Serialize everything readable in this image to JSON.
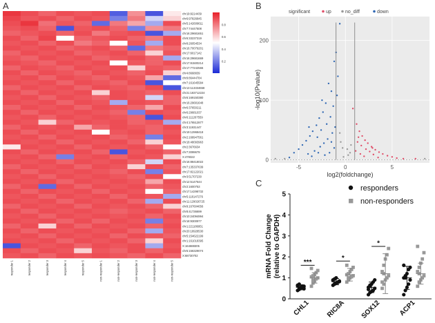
{
  "panel_letters": {
    "a": "A",
    "b": "B",
    "c": "C"
  },
  "chart_data": [
    {
      "type": "heatmap",
      "panel": "A",
      "title": "",
      "columns": [
        "responder 1",
        "responder 2",
        "responder 3",
        "responder 4",
        "responder 5",
        "non-responder 1",
        "non-responder 2",
        "non-responder 3",
        "non-responder 4",
        "non-responder 5"
      ],
      "rows": [
        "chr19:9214439",
        "chr6:97826845",
        "chr5:142609611",
        "chr7:74447508",
        "chr16:29681651",
        "chr6:33237319",
        "chr8:26054534",
        "chr16:70079201",
        "chr17:6017142",
        "chr16:29681669",
        "chr17:81500214",
        "chr17:77242566",
        "chr4:8668839",
        "chr9:86444784",
        "chr7:161645584",
        "chr13:113334658",
        "chr21:183712224",
        "chr6:169150380",
        "chr16:29681648",
        "chr6:37650211",
        "chr6:29681037",
        "chr6:111267559",
        "chr4:176512877",
        "chr3:11931447",
        "chr19:12968418",
        "chr2:168947561",
        "chr18:48093963",
        "chr2:3676634",
        "chr7:3099679",
        "X:478322",
        "chr16:88418022",
        "chr7:135337639",
        "chr17:82122021",
        "chr3:51707230",
        "chr12:5147544",
        "chr2:1600753",
        "chr17:14298732",
        "chr5:118147276",
        "chr11:129026725",
        "chr9:167604656",
        "chr8:41736699",
        "chr10:24094994",
        "chr18:9300977",
        "chr1:221186951",
        "chr20:18928530",
        "chr5:154622199",
        "chr1:161018395",
        "X:164688305",
        "chr5:156329074",
        "X:68730702"
      ],
      "values": [
        [
          0.95,
          0.9,
          0.85,
          0.9,
          0.88,
          0.9,
          0.12,
          0.75,
          0.1,
          0.55
        ],
        [
          0.92,
          0.88,
          0.9,
          0.85,
          0.9,
          0.88,
          0.2,
          0.8,
          0.4,
          0.6
        ],
        [
          0.9,
          0.95,
          0.82,
          0.88,
          0.85,
          0.15,
          0.8,
          0.7,
          0.3,
          0.9
        ],
        [
          0.88,
          0.9,
          0.85,
          0.1,
          0.88,
          0.9,
          0.85,
          0.2,
          0.75,
          0.8
        ],
        [
          0.85,
          0.88,
          0.9,
          0.85,
          0.9,
          0.8,
          0.88,
          0.9,
          0.1,
          0.3
        ],
        [
          0.9,
          0.85,
          0.92,
          0.5,
          0.85,
          0.88,
          0.9,
          0.85,
          0.8,
          0.9
        ],
        [
          0.88,
          0.9,
          0.85,
          0.9,
          0.8,
          0.85,
          0.5,
          0.88,
          0.3,
          0.9
        ],
        [
          0.9,
          0.88,
          0.9,
          0.85,
          0.88,
          0.9,
          0.85,
          0.15,
          0.8,
          0.85
        ],
        [
          0.85,
          0.9,
          0.88,
          0.9,
          0.85,
          0.88,
          0.9,
          0.85,
          0.6,
          0.88
        ],
        [
          0.88,
          0.85,
          0.9,
          0.88,
          0.9,
          0.85,
          0.88,
          0.9,
          0.85,
          0.3
        ],
        [
          0.9,
          0.88,
          0.85,
          0.9,
          0.88,
          0.9,
          0.5,
          0.88,
          0.85,
          0.9
        ],
        [
          0.85,
          0.9,
          0.88,
          0.85,
          0.9,
          0.88,
          0.9,
          0.6,
          0.88,
          0.85
        ],
        [
          0.9,
          0.85,
          0.9,
          0.88,
          0.85,
          0.9,
          0.88,
          0.85,
          0.9,
          0.6
        ],
        [
          0.88,
          0.9,
          0.85,
          0.9,
          0.88,
          0.85,
          0.9,
          0.88,
          0.7,
          0.15
        ],
        [
          0.9,
          0.88,
          0.9,
          0.85,
          0.9,
          0.88,
          0.85,
          0.9,
          0.1,
          0.5
        ],
        [
          0.85,
          0.9,
          0.88,
          0.9,
          0.85,
          0.9,
          0.88,
          0.85,
          0.9,
          0.1
        ],
        [
          0.9,
          0.85,
          0.9,
          0.88,
          0.9,
          0.6,
          0.9,
          0.88,
          0.85,
          0.9
        ],
        [
          0.88,
          0.9,
          0.85,
          0.9,
          0.88,
          0.85,
          0.9,
          0.88,
          0.4,
          0.85
        ],
        [
          0.9,
          0.88,
          0.9,
          0.85,
          0.9,
          0.88,
          0.3,
          0.9,
          0.88,
          0.85
        ],
        [
          0.85,
          0.9,
          0.88,
          0.9,
          0.85,
          0.9,
          0.88,
          0.85,
          0.7,
          0.9
        ],
        [
          0.9,
          0.85,
          0.9,
          0.88,
          0.9,
          0.88,
          0.85,
          0.2,
          0.9,
          0.88
        ],
        [
          0.88,
          0.9,
          0.85,
          0.9,
          0.88,
          0.9,
          0.88,
          0.85,
          0.1,
          0.9
        ],
        [
          0.9,
          0.88,
          0.6,
          0.85,
          0.9,
          0.88,
          0.9,
          0.85,
          0.88,
          0.3
        ],
        [
          0.85,
          0.9,
          0.88,
          0.9,
          0.7,
          0.85,
          0.9,
          0.88,
          0.85,
          0.9
        ],
        [
          0.9,
          0.85,
          0.9,
          0.88,
          0.9,
          0.5,
          0.88,
          0.9,
          0.85,
          0.88
        ],
        [
          0.88,
          0.9,
          0.85,
          0.9,
          0.88,
          0.9,
          0.85,
          0.88,
          0.2,
          0.9
        ],
        [
          0.9,
          0.88,
          0.9,
          0.85,
          0.9,
          0.88,
          0.9,
          0.85,
          0.6,
          0.88
        ],
        [
          0.55,
          0.9,
          0.88,
          0.9,
          0.85,
          0.9,
          0.88,
          0.9,
          0.85,
          0.5
        ],
        [
          0.9,
          0.85,
          0.9,
          0.88,
          0.9,
          0.85,
          0.1,
          0.88,
          0.9,
          0.85
        ],
        [
          0.88,
          0.9,
          0.85,
          0.2,
          0.88,
          0.9,
          0.85,
          0.9,
          0.88,
          0.6
        ],
        [
          0.9,
          0.88,
          0.9,
          0.85,
          0.9,
          0.88,
          0.9,
          0.85,
          0.4,
          0.9
        ],
        [
          0.85,
          0.9,
          0.88,
          0.9,
          0.85,
          0.9,
          0.88,
          0.6,
          0.9,
          0.85
        ],
        [
          0.9,
          0.85,
          0.9,
          0.88,
          0.9,
          0.88,
          0.85,
          0.9,
          0.2,
          0.88
        ],
        [
          0.88,
          0.9,
          0.85,
          0.9,
          0.88,
          0.9,
          0.88,
          0.85,
          0.9,
          0.5
        ],
        [
          0.9,
          0.88,
          0.9,
          0.85,
          0.9,
          0.88,
          0.9,
          0.88,
          0.7,
          0.9
        ],
        [
          0.85,
          0.9,
          0.15,
          0.9,
          0.85,
          0.9,
          0.88,
          0.9,
          0.85,
          0.88
        ],
        [
          0.9,
          0.85,
          0.9,
          0.88,
          0.9,
          0.85,
          0.9,
          0.88,
          0.5,
          0.85
        ],
        [
          0.88,
          0.9,
          0.85,
          0.9,
          0.88,
          0.9,
          0.85,
          0.9,
          0.88,
          0.3
        ],
        [
          0.9,
          0.88,
          0.9,
          0.85,
          0.9,
          0.88,
          0.9,
          0.85,
          0.3,
          0.9
        ],
        [
          0.85,
          0.9,
          0.88,
          0.9,
          0.85,
          0.9,
          0.88,
          0.9,
          0.85,
          0.6
        ],
        [
          0.9,
          0.85,
          0.9,
          0.88,
          0.9,
          0.88,
          0.85,
          0.88,
          0.9,
          0.85
        ],
        [
          0.88,
          0.9,
          0.85,
          0.9,
          0.88,
          0.9,
          0.88,
          0.9,
          0.85,
          0.9
        ],
        [
          0.9,
          0.88,
          0.9,
          0.85,
          0.9,
          0.85,
          0.9,
          0.88,
          0.2,
          0.88
        ],
        [
          0.85,
          0.9,
          0.6,
          0.9,
          0.85,
          0.9,
          0.88,
          0.9,
          0.85,
          0.9
        ],
        [
          0.9,
          0.85,
          0.9,
          0.88,
          0.9,
          0.88,
          0.9,
          0.85,
          0.3,
          0.88
        ],
        [
          0.88,
          0.9,
          0.85,
          0.9,
          0.88,
          0.9,
          0.85,
          0.9,
          0.88,
          0.85
        ],
        [
          0.9,
          0.88,
          0.9,
          0.85,
          0.9,
          0.88,
          0.9,
          0.85,
          0.6,
          0.9
        ],
        [
          0.1,
          0.9,
          0.88,
          0.9,
          0.85,
          0.9,
          0.88,
          0.9,
          0.3,
          0.88
        ],
        [
          0.9,
          0.85,
          0.9,
          0.88,
          0.6,
          0.88,
          0.85,
          0.9,
          0.85,
          0.9
        ],
        [
          0.88,
          0.9,
          0.85,
          0.9,
          0.88,
          0.9,
          0.88,
          0.85,
          0.9,
          0.85
        ]
      ],
      "colorbar_ticks": [
        "0.8",
        "0.6",
        "0.4",
        "0.2"
      ],
      "colorbar_values": [
        0.8,
        0.6,
        0.4,
        0.2
      ],
      "color_low": "#1c2bd6",
      "color_mid": "#ffffff",
      "color_high": "#e8202a"
    },
    {
      "type": "scatter",
      "panel": "B",
      "title": "",
      "legend_title": "significant",
      "legend": [
        {
          "label": "up",
          "color": "#e0506a"
        },
        {
          "label": "no_diff",
          "color": "#999999"
        },
        {
          "label": "down",
          "color": "#2f67b3"
        }
      ],
      "xlabel": "log2(foldchange)",
      "ylabel": "-log10(Pvalue)",
      "xlim": [
        -8,
        9
      ],
      "ylim": [
        -5,
        240
      ],
      "xticks": [
        -5,
        0,
        5
      ],
      "yticks": [
        0,
        100,
        200
      ],
      "vlines": [
        -1,
        1
      ],
      "down_points": [
        [
          -0.6,
          228
        ],
        [
          -0.8,
          140
        ],
        [
          -1.2,
          165
        ],
        [
          -1.5,
          115
        ],
        [
          -1.8,
          128
        ],
        [
          -2.1,
          95
        ],
        [
          -2.4,
          80
        ],
        [
          -2.8,
          70
        ],
        [
          -3.1,
          58
        ],
        [
          -3.5,
          48
        ],
        [
          -3.8,
          40
        ],
        [
          -4.2,
          32
        ],
        [
          -4.6,
          25
        ],
        [
          -5.0,
          18
        ],
        [
          -1.3,
          90
        ],
        [
          -1.6,
          72
        ],
        [
          -2.0,
          60
        ],
        [
          -2.6,
          50
        ],
        [
          -3.0,
          38
        ],
        [
          -1.1,
          55
        ],
        [
          -1.4,
          45
        ],
        [
          -1.9,
          35
        ],
        [
          -2.3,
          28
        ],
        [
          -2.7,
          22
        ],
        [
          -3.3,
          15
        ],
        [
          -1.2,
          20
        ],
        [
          -1.7,
          12
        ],
        [
          -2.2,
          8
        ],
        [
          -3.6,
          6
        ],
        [
          -4.0,
          10
        ],
        [
          -0.9,
          108
        ],
        [
          -1.0,
          180
        ],
        [
          -2.5,
          100
        ],
        [
          -3.9,
          55
        ],
        [
          -5.5,
          12
        ],
        [
          -6.0,
          4
        ],
        [
          -1.5,
          30
        ],
        [
          -2.9,
          12
        ]
      ],
      "up_points": [
        [
          0.8,
          86
        ],
        [
          1.2,
          60
        ],
        [
          1.5,
          48
        ],
        [
          1.8,
          40
        ],
        [
          2.1,
          33
        ],
        [
          2.4,
          28
        ],
        [
          2.8,
          22
        ],
        [
          3.2,
          17
        ],
        [
          3.6,
          13
        ],
        [
          4.0,
          10
        ],
        [
          4.5,
          7
        ],
        [
          5.0,
          5
        ],
        [
          1.3,
          30
        ],
        [
          1.7,
          24
        ],
        [
          2.2,
          18
        ],
        [
          2.6,
          14
        ],
        [
          3.0,
          9
        ],
        [
          1.1,
          15
        ],
        [
          1.6,
          10
        ],
        [
          2.0,
          6
        ],
        [
          3.5,
          4
        ],
        [
          5.5,
          3
        ],
        [
          6.2,
          2
        ],
        [
          7.5,
          2
        ],
        [
          1.4,
          38
        ],
        [
          2.9,
          20
        ]
      ],
      "nodiff_points": [
        [
          -0.5,
          30
        ],
        [
          -0.3,
          20
        ],
        [
          0.2,
          18
        ],
        [
          0.5,
          12
        ],
        [
          -0.6,
          45
        ],
        [
          0.3,
          8
        ],
        [
          -0.2,
          5
        ],
        [
          0.6,
          25
        ],
        [
          -7.5,
          2
        ],
        [
          -6.5,
          2
        ],
        [
          8.5,
          2
        ]
      ]
    },
    {
      "type": "scatter",
      "panel": "C",
      "title": "",
      "ylabel": "mRNA Fold Change\n(relative to GAPDH)",
      "ylim": [
        0,
        5
      ],
      "yticks": [
        0,
        1,
        2,
        3,
        4,
        5
      ],
      "categories": [
        "CHL1",
        "RIC8A",
        "SOX12",
        "ACP1"
      ],
      "series": [
        {
          "name": "responders",
          "marker": "circle",
          "color": "#111111",
          "means": [
            0.55,
            0.82,
            0.55,
            1.0
          ],
          "sd": [
            0.12,
            0.15,
            0.25,
            0.55
          ],
          "points": [
            [
              0.4,
              0.45,
              0.5,
              0.55,
              0.6,
              0.65,
              0.5,
              0.55,
              0.6,
              0.48,
              0.62,
              0.7
            ],
            [
              0.65,
              0.7,
              0.75,
              0.8,
              0.85,
              0.9,
              0.95,
              1.0,
              0.78,
              0.82,
              0.88,
              0.72
            ],
            [
              0.2,
              0.3,
              0.35,
              0.4,
              0.5,
              0.55,
              0.6,
              0.7,
              0.8,
              0.9,
              0.45,
              0.65
            ],
            [
              0.2,
              0.4,
              0.55,
              0.7,
              0.9,
              1.0,
              1.1,
              1.2,
              1.4,
              1.5,
              1.6,
              1.0
            ]
          ]
        },
        {
          "name": "non-responders",
          "marker": "square",
          "color": "#999999",
          "means": [
            1.0,
            1.15,
            1.2,
            1.2
          ],
          "sd": [
            0.25,
            0.3,
            0.95,
            0.5
          ],
          "points": [
            [
              0.6,
              0.75,
              0.85,
              0.95,
              1.0,
              1.05,
              1.1,
              1.15,
              1.25,
              1.35,
              1.45,
              0.9
            ],
            [
              0.8,
              0.9,
              1.0,
              1.05,
              1.1,
              1.15,
              1.2,
              1.3,
              1.4,
              1.5,
              1.6,
              1.0
            ],
            [
              0.5,
              0.7,
              0.9,
              1.0,
              1.1,
              1.3,
              1.6,
              1.9,
              2.1,
              2.4,
              0.8,
              1.2
            ],
            [
              0.6,
              0.8,
              0.9,
              1.0,
              1.1,
              1.3,
              1.5,
              1.7,
              1.9,
              2.2,
              2.5,
              1.2
            ]
          ]
        }
      ],
      "significance": [
        {
          "category_index": 0,
          "label": "***"
        },
        {
          "category_index": 1,
          "label": "*"
        },
        {
          "category_index": 2,
          "label": "*"
        }
      ]
    }
  ]
}
